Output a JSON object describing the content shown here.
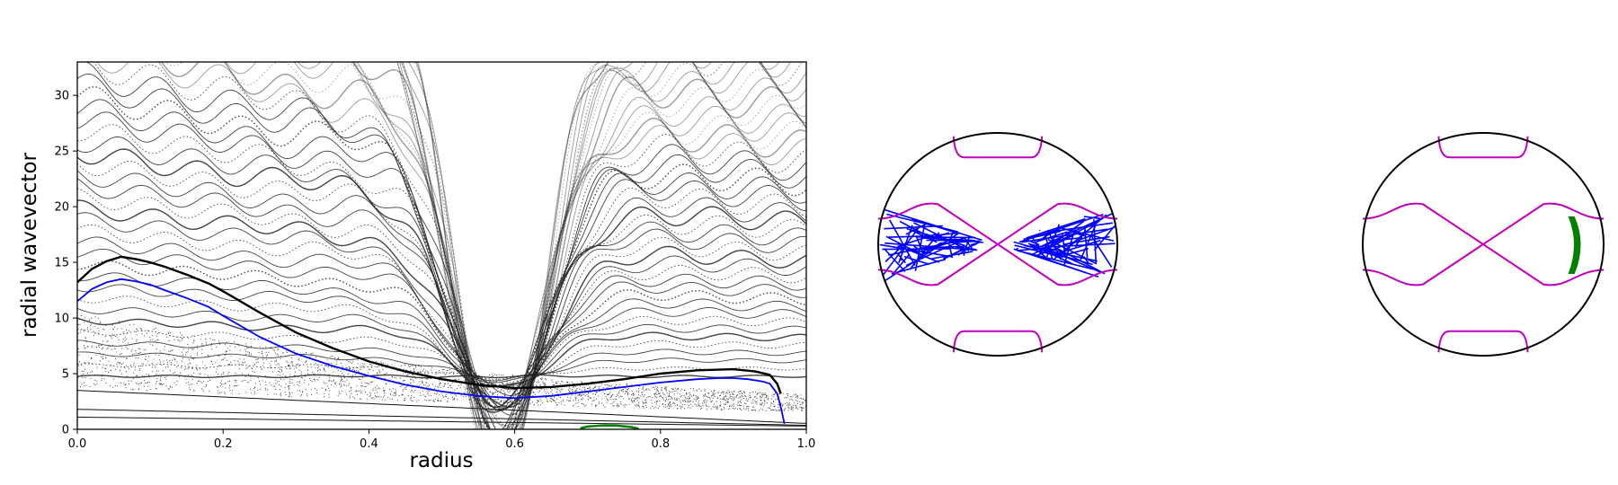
{
  "chart_data": [
    {
      "type": "scatter",
      "title": "",
      "xlabel": "radius",
      "ylabel": "radial wavevector",
      "xlim": [
        0.0,
        1.0
      ],
      "ylim": [
        0,
        33
      ],
      "x_ticks": [
        "0.0",
        "0.2",
        "0.4",
        "0.6",
        "0.8",
        "1.0"
      ],
      "x_tick_values": [
        0.0,
        0.2,
        0.4,
        0.6,
        0.8,
        1.0
      ],
      "y_ticks": [
        "0",
        "5",
        "10",
        "15",
        "20",
        "25",
        "30"
      ],
      "y_tick_values": [
        0,
        5,
        10,
        15,
        20,
        25,
        30
      ],
      "grid": false,
      "legend": "none",
      "series": [
        {
          "color": "#0000ff",
          "style": "line",
          "x": [
            0.0,
            0.02,
            0.04,
            0.06,
            0.08,
            0.1,
            0.12,
            0.15,
            0.18,
            0.2,
            0.25,
            0.3,
            0.35,
            0.4,
            0.45,
            0.5,
            0.55,
            0.6,
            0.65,
            0.7,
            0.75,
            0.8,
            0.85,
            0.88,
            0.9,
            0.92,
            0.94,
            0.95,
            0.96,
            0.965,
            0.97
          ],
          "y": [
            11.5,
            12.6,
            13.2,
            13.5,
            13.3,
            13.0,
            12.5,
            11.8,
            11.0,
            10.2,
            8.3,
            6.8,
            5.7,
            4.8,
            4.0,
            3.4,
            3.0,
            2.8,
            3.0,
            3.4,
            3.8,
            4.2,
            4.5,
            4.6,
            4.6,
            4.5,
            4.3,
            4.1,
            3.2,
            2.0,
            0.5
          ]
        },
        {
          "color": "#000000",
          "style": "line",
          "x": [
            0.0,
            0.02,
            0.04,
            0.06,
            0.08,
            0.1,
            0.12,
            0.15,
            0.18,
            0.2,
            0.25,
            0.3,
            0.35,
            0.4,
            0.45,
            0.5,
            0.55,
            0.6,
            0.65,
            0.7,
            0.75,
            0.8,
            0.85,
            0.9,
            0.93,
            0.95,
            0.96,
            0.965
          ],
          "y": [
            13.2,
            14.4,
            15.1,
            15.5,
            15.3,
            15.0,
            14.6,
            13.9,
            13.1,
            12.4,
            10.5,
            8.7,
            7.3,
            6.1,
            5.2,
            4.5,
            4.0,
            3.7,
            3.8,
            4.1,
            4.5,
            5.0,
            5.3,
            5.4,
            5.2,
            4.9,
            4.1,
            3.2
          ]
        },
        {
          "color": "#008000",
          "style": "line",
          "x": [
            0.69,
            0.7,
            0.72,
            0.74,
            0.76,
            0.77
          ],
          "y": [
            0.1,
            0.25,
            0.35,
            0.33,
            0.2,
            0.05
          ]
        }
      ]
    },
    {
      "type": "scatter",
      "title": "",
      "xlim": [
        -1,
        1
      ],
      "ylim": [
        -1,
        1
      ],
      "series": [
        {
          "color": "#bf00bf",
          "style": "line",
          "name": ""
        },
        {
          "color": "#0000ff",
          "style": "line",
          "name": ""
        }
      ]
    },
    {
      "type": "scatter",
      "title": "",
      "xlim": [
        -1,
        1
      ],
      "ylim": [
        -1,
        1
      ],
      "series": [
        {
          "color": "#bf00bf",
          "style": "line",
          "name": ""
        },
        {
          "color": "#008000",
          "style": "line",
          "name": ""
        }
      ]
    }
  ],
  "colors": {
    "background": "#ffffff",
    "axes": "#000000",
    "scatter_points": "#1a1a1a",
    "blue": "#0000ff",
    "green": "#008000",
    "magenta": "#bf00bf"
  }
}
